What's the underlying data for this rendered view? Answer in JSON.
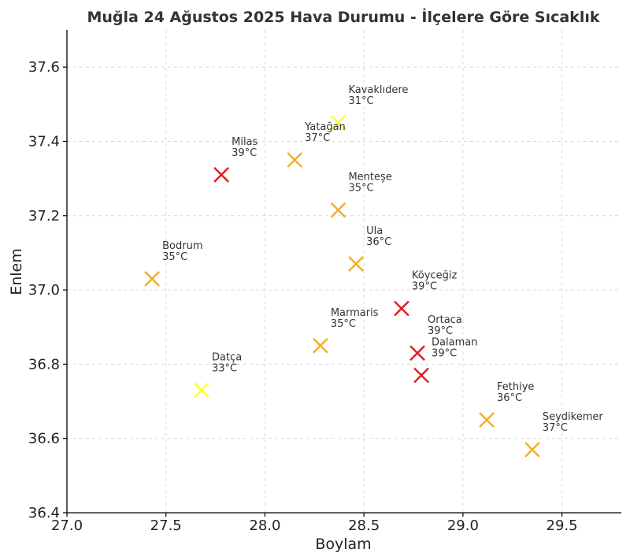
{
  "chart_data": {
    "type": "scatter",
    "title": "Muğla 24 Ağustos 2025 Hava Durumu - İlçelere Göre Sıcaklık",
    "xlabel": "Boylam",
    "ylabel": "Enlem",
    "xlim": [
      27.0,
      29.8
    ],
    "ylim": [
      36.4,
      37.7
    ],
    "xticks": [
      27.0,
      27.5,
      28.0,
      28.5,
      29.0,
      29.5
    ],
    "xtick_labels": [
      "27.0",
      "27.5",
      "28.0",
      "28.5",
      "29.0",
      "29.5"
    ],
    "yticks": [
      36.4,
      36.6,
      36.8,
      37.0,
      37.2,
      37.4,
      37.6
    ],
    "ytick_labels": [
      "36.4",
      "36.6",
      "36.8",
      "37.0",
      "37.2",
      "37.4",
      "37.6"
    ],
    "grid": true,
    "marker": "x",
    "points": [
      {
        "name": "Kavaklıdere",
        "x": 28.37,
        "y": 37.45,
        "temp_label": "31°C",
        "temp": 31,
        "color": "#ffff33"
      },
      {
        "name": "Yatağan",
        "x": 28.15,
        "y": 37.35,
        "temp_label": "37°C",
        "temp": 37,
        "color": "#f0b030"
      },
      {
        "name": "Milas",
        "x": 27.78,
        "y": 37.31,
        "temp_label": "39°C",
        "temp": 39,
        "color": "#e02020"
      },
      {
        "name": "Menteşe",
        "x": 28.37,
        "y": 37.215,
        "temp_label": "35°C",
        "temp": 35,
        "color": "#f0b030"
      },
      {
        "name": "Ula",
        "x": 28.46,
        "y": 37.07,
        "temp_label": "36°C",
        "temp": 36,
        "color": "#f0b030"
      },
      {
        "name": "Bodrum",
        "x": 27.43,
        "y": 37.03,
        "temp_label": "35°C",
        "temp": 35,
        "color": "#f0b030"
      },
      {
        "name": "Köyceğiz",
        "x": 28.69,
        "y": 36.95,
        "temp_label": "39°C",
        "temp": 39,
        "color": "#e02020"
      },
      {
        "name": "Marmaris",
        "x": 28.28,
        "y": 36.85,
        "temp_label": "35°C",
        "temp": 35,
        "color": "#f0b030"
      },
      {
        "name": "Ortaca",
        "x": 28.77,
        "y": 36.83,
        "temp_label": "39°C",
        "temp": 39,
        "color": "#e02020"
      },
      {
        "name": "Dalaman",
        "x": 28.79,
        "y": 36.77,
        "temp_label": "39°C",
        "temp": 39,
        "color": "#e02020"
      },
      {
        "name": "Datça",
        "x": 27.68,
        "y": 36.73,
        "temp_label": "33°C",
        "temp": 33,
        "color": "#ffff33"
      },
      {
        "name": "Fethiye",
        "x": 29.12,
        "y": 36.65,
        "temp_label": "36°C",
        "temp": 36,
        "color": "#f0b030"
      },
      {
        "name": "Seydikemer",
        "x": 29.35,
        "y": 36.57,
        "temp_label": "37°C",
        "temp": 37,
        "color": "#f0b030"
      }
    ]
  }
}
